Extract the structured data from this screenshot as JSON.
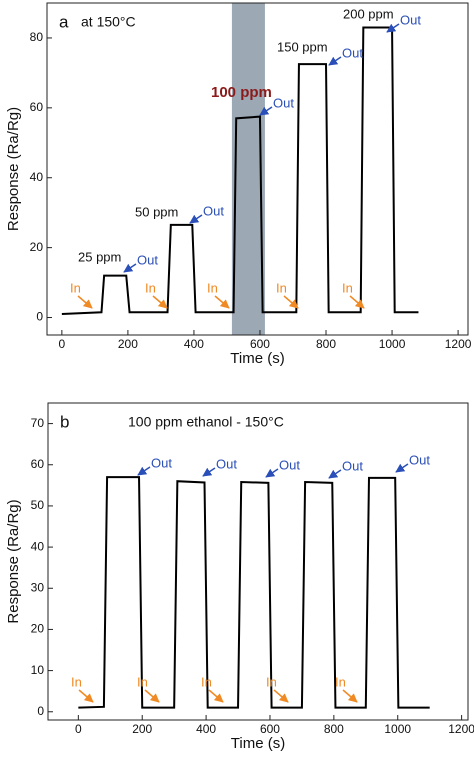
{
  "chart_data": [
    {
      "type": "line",
      "panel": "a",
      "title": "at 150°C",
      "x_label": "Time (s)",
      "y_label": "Response (Ra/Rg)",
      "x": [
        0,
        120,
        128,
        195,
        205,
        320,
        330,
        395,
        405,
        520,
        528,
        600,
        608,
        710,
        718,
        800,
        808,
        905,
        913,
        1000,
        1008,
        1080
      ],
      "values": [
        1,
        1.5,
        12,
        12,
        1.5,
        1.5,
        26.5,
        26.5,
        1.5,
        1.5,
        57,
        57.5,
        1.5,
        1.5,
        72.5,
        72.5,
        1.5,
        1.5,
        83,
        83,
        1.5,
        1.5
      ],
      "color": "#000000",
      "shaded_region": [
        515,
        615
      ],
      "shade_color": "#9ca8b4",
      "xlim": [
        -45,
        1230
      ],
      "xticks": [
        0,
        200,
        400,
        600,
        800,
        1000,
        1200
      ],
      "ylim": [
        -5,
        90
      ],
      "yticks": [
        0,
        20,
        40,
        60,
        80
      ],
      "annotations": [
        "25 ppm",
        "Out",
        "50 ppm",
        "Out",
        "100 ppm",
        "Out",
        "150 ppm",
        "Out",
        "200 ppm",
        "Out",
        "In",
        "In",
        "In",
        "In",
        "In"
      ]
    },
    {
      "type": "line",
      "panel": "b",
      "title": "100 ppm ethanol - 150°C",
      "x_label": "Time (s)",
      "y_label": "Response (Ra/Rg)",
      "x": [
        0,
        80,
        90,
        190,
        200,
        300,
        310,
        395,
        405,
        500,
        510,
        595,
        605,
        700,
        710,
        795,
        805,
        900,
        910,
        992,
        1002,
        1100
      ],
      "values": [
        1,
        1.2,
        57,
        57,
        1,
        1,
        56,
        55.7,
        1,
        1,
        55.8,
        55.6,
        1,
        1,
        55.8,
        55.6,
        1,
        1,
        56.8,
        56.8,
        1,
        1
      ],
      "color": "#000000",
      "xlim": [
        -95,
        1220
      ],
      "xticks": [
        0,
        200,
        400,
        600,
        800,
        1000,
        1200
      ],
      "ylim": [
        -2,
        75
      ],
      "yticks": [
        0,
        10,
        20,
        30,
        40,
        50,
        60,
        70
      ],
      "annotations": [
        "Out",
        "Out",
        "Out",
        "Out",
        "Out",
        "In",
        "In",
        "In",
        "In",
        "In"
      ]
    }
  ]
}
